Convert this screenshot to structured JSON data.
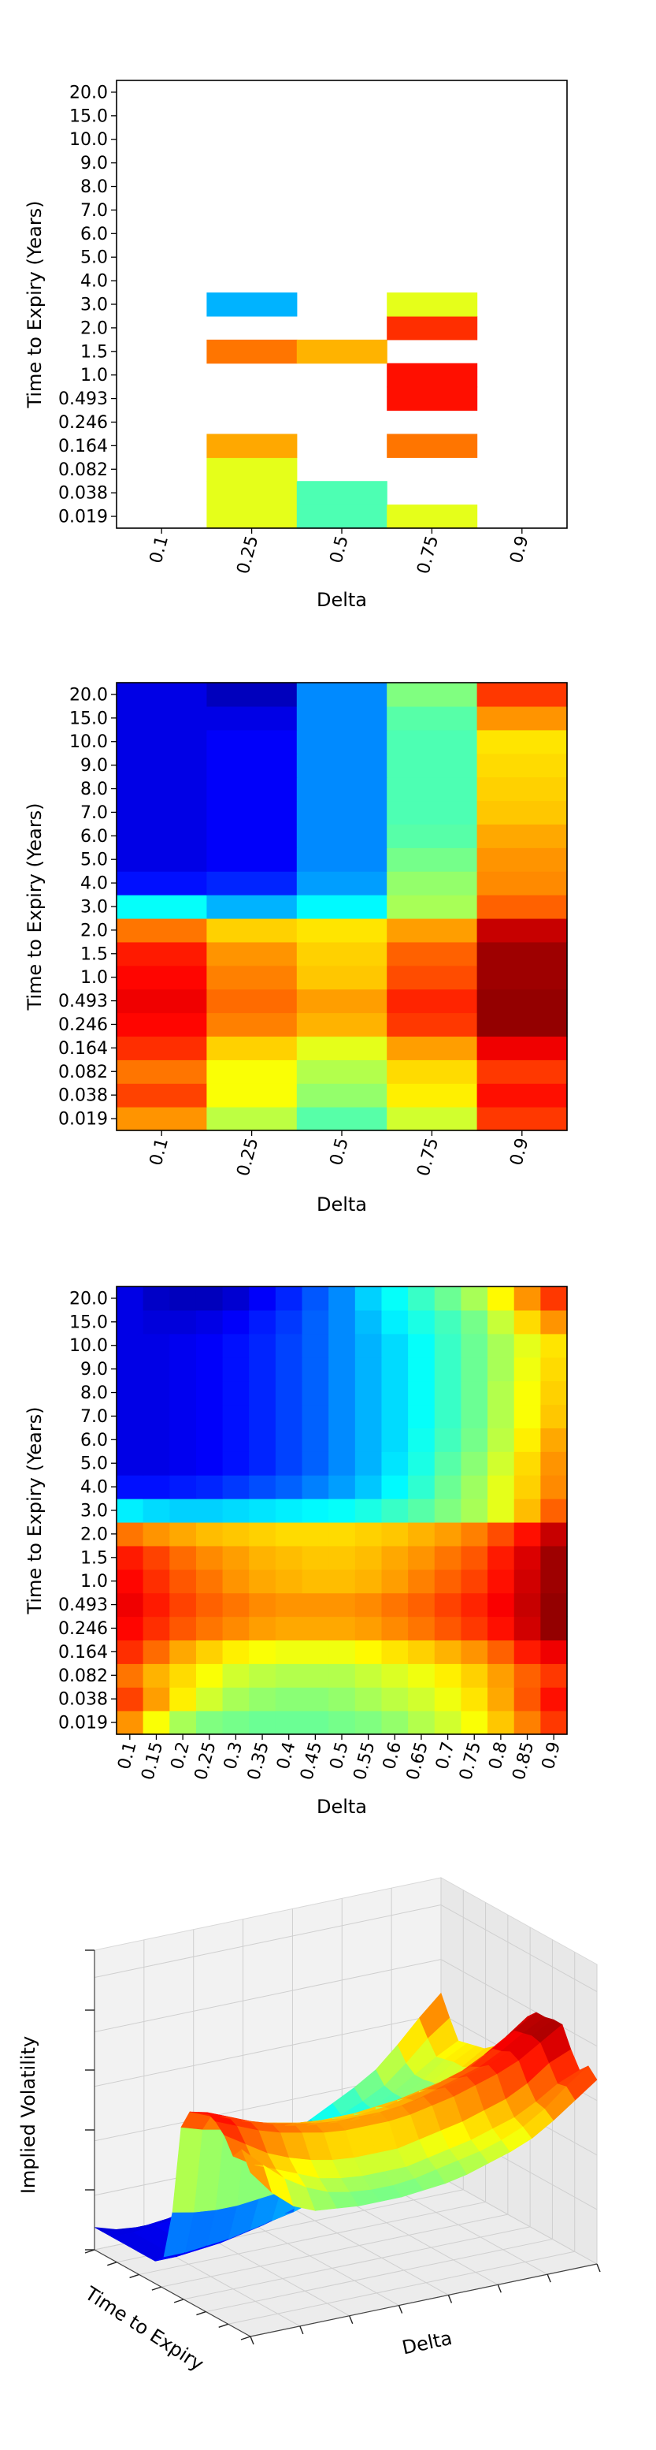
{
  "chart_data": [
    {
      "type": "heatmap",
      "title": "",
      "xlabel": "Delta",
      "ylabel": "Time to Expiry (Years)",
      "colormap": "jet",
      "x_categories": [
        "0.1",
        "0.25",
        "0.5",
        "0.75",
        "0.9"
      ],
      "y_categories": [
        "0.019",
        "0.038",
        "0.082",
        "0.164",
        "0.246",
        "0.493",
        "1.0",
        "1.5",
        "2.0",
        "3.0",
        "4.0",
        "5.0",
        "6.0",
        "7.0",
        "8.0",
        "9.0",
        "10.0",
        "15.0",
        "20.0"
      ],
      "x_tick_labels": [
        "0.1",
        "0.25",
        "0.5",
        "0.75",
        "0.9"
      ],
      "y_tick_labels": [
        "0.019",
        "0.038",
        "0.082",
        "0.164",
        "0.246",
        "0.493",
        "1.0",
        "1.5",
        "2.0",
        "3.0",
        "4.0",
        "5.0",
        "6.0",
        "7.0",
        "8.0",
        "9.0",
        "10.0",
        "15.0",
        "20.0"
      ],
      "x_tick_rotation": 75,
      "values": [
        [
          null,
          0.6,
          0.45,
          0.6,
          null
        ],
        [
          null,
          0.6,
          0.45,
          null,
          null
        ],
        [
          null,
          0.6,
          null,
          null,
          null
        ],
        [
          null,
          0.71,
          null,
          0.76,
          null
        ],
        [
          null,
          null,
          null,
          null,
          null
        ],
        [
          null,
          null,
          null,
          0.86,
          null
        ],
        [
          null,
          null,
          null,
          0.86,
          null
        ],
        [
          null,
          0.76,
          0.7,
          null,
          null
        ],
        [
          null,
          null,
          null,
          0.83,
          null
        ],
        [
          null,
          0.3,
          null,
          0.6,
          null
        ],
        [
          null,
          null,
          null,
          null,
          null
        ],
        [
          null,
          null,
          null,
          null,
          null
        ],
        [
          null,
          null,
          null,
          null,
          null
        ],
        [
          null,
          null,
          null,
          null,
          null
        ],
        [
          null,
          null,
          null,
          null,
          null
        ],
        [
          null,
          null,
          null,
          null,
          null
        ],
        [
          null,
          null,
          null,
          null,
          null
        ],
        [
          null,
          null,
          null,
          null,
          null
        ],
        [
          null,
          null,
          null,
          null,
          null
        ]
      ]
    },
    {
      "type": "heatmap",
      "title": "",
      "xlabel": "Delta",
      "ylabel": "Time to Expiry (Years)",
      "colormap": "jet",
      "x_categories": [
        "0.1",
        "0.25",
        "0.5",
        "0.75",
        "0.9"
      ],
      "y_categories": [
        "0.019",
        "0.038",
        "0.082",
        "0.164",
        "0.246",
        "0.493",
        "1.0",
        "1.5",
        "2.0",
        "3.0",
        "4.0",
        "5.0",
        "6.0",
        "7.0",
        "8.0",
        "9.0",
        "10.0",
        "15.0",
        "20.0"
      ],
      "x_tick_labels": [
        "0.1",
        "0.25",
        "0.5",
        "0.75",
        "0.9"
      ],
      "y_tick_labels": [
        "0.019",
        "0.038",
        "0.082",
        "0.164",
        "0.246",
        "0.493",
        "1.0",
        "1.5",
        "2.0",
        "3.0",
        "4.0",
        "5.0",
        "6.0",
        "7.0",
        "8.0",
        "9.0",
        "10.0",
        "15.0",
        "20.0"
      ],
      "x_tick_rotation": 75,
      "values": [
        [
          0.73,
          0.56,
          0.46,
          0.58,
          0.82
        ],
        [
          0.81,
          0.62,
          0.52,
          0.64,
          0.86
        ],
        [
          0.76,
          0.62,
          0.55,
          0.66,
          0.82
        ],
        [
          0.83,
          0.67,
          0.6,
          0.72,
          0.89
        ],
        [
          0.87,
          0.75,
          0.7,
          0.82,
          0.98
        ],
        [
          0.89,
          0.77,
          0.72,
          0.84,
          0.98
        ],
        [
          0.87,
          0.75,
          0.68,
          0.8,
          0.97
        ],
        [
          0.85,
          0.73,
          0.67,
          0.78,
          0.97
        ],
        [
          0.76,
          0.67,
          0.65,
          0.72,
          0.93
        ],
        [
          0.38,
          0.3,
          0.37,
          0.54,
          0.78
        ],
        [
          0.14,
          0.16,
          0.28,
          0.52,
          0.74
        ],
        [
          0.1,
          0.12,
          0.26,
          0.49,
          0.73
        ],
        [
          0.1,
          0.12,
          0.26,
          0.46,
          0.71
        ],
        [
          0.1,
          0.12,
          0.26,
          0.45,
          0.68
        ],
        [
          0.1,
          0.12,
          0.26,
          0.45,
          0.67
        ],
        [
          0.1,
          0.12,
          0.26,
          0.45,
          0.66
        ],
        [
          0.1,
          0.12,
          0.26,
          0.45,
          0.65
        ],
        [
          0.1,
          0.1,
          0.26,
          0.46,
          0.73
        ],
        [
          0.1,
          0.06,
          0.26,
          0.5,
          0.82
        ]
      ]
    },
    {
      "type": "heatmap",
      "title": "",
      "xlabel": "Delta",
      "ylabel": "Time to Expiry (Years)",
      "colormap": "jet",
      "x_categories": [
        "0.1",
        "0.15",
        "0.2",
        "0.25",
        "0.3",
        "0.35",
        "0.4",
        "0.45",
        "0.5",
        "0.55",
        "0.6",
        "0.65",
        "0.7",
        "0.75",
        "0.8",
        "0.85",
        "0.9"
      ],
      "y_categories": [
        "0.019",
        "0.038",
        "0.082",
        "0.164",
        "0.246",
        "0.493",
        "1.0",
        "1.5",
        "2.0",
        "3.0",
        "4.0",
        "5.0",
        "6.0",
        "7.0",
        "8.0",
        "9.0",
        "10.0",
        "15.0",
        "20.0"
      ],
      "x_tick_labels": [
        "0.1",
        "0.15",
        "0.2",
        "0.25",
        "0.3",
        "0.35",
        "0.4",
        "0.45",
        "0.5",
        "0.55",
        "0.6",
        "0.65",
        "0.7",
        "0.75",
        "0.8",
        "0.85",
        "0.9"
      ],
      "y_tick_labels": [
        "0.019",
        "0.038",
        "0.082",
        "0.164",
        "0.246",
        "0.493",
        "1.0",
        "1.5",
        "2.0",
        "3.0",
        "4.0",
        "5.0",
        "6.0",
        "7.0",
        "8.0",
        "9.0",
        "10.0",
        "15.0",
        "20.0"
      ],
      "x_tick_rotation": 75,
      "row_profile": [
        [
          0.73,
          0.62,
          0.54,
          0.5,
          0.49,
          0.48,
          0.48,
          0.48,
          0.49,
          0.5,
          0.52,
          0.55,
          0.58,
          0.62,
          0.68,
          0.75,
          0.82
        ],
        [
          0.81,
          0.72,
          0.64,
          0.58,
          0.54,
          0.52,
          0.51,
          0.51,
          0.52,
          0.54,
          0.56,
          0.58,
          0.61,
          0.65,
          0.71,
          0.79,
          0.86
        ],
        [
          0.76,
          0.7,
          0.66,
          0.62,
          0.58,
          0.56,
          0.55,
          0.55,
          0.55,
          0.57,
          0.59,
          0.61,
          0.64,
          0.67,
          0.72,
          0.78,
          0.82
        ],
        [
          0.83,
          0.77,
          0.71,
          0.67,
          0.64,
          0.62,
          0.61,
          0.61,
          0.61,
          0.63,
          0.65,
          0.67,
          0.7,
          0.73,
          0.78,
          0.85,
          0.89
        ],
        [
          0.87,
          0.83,
          0.79,
          0.76,
          0.74,
          0.72,
          0.71,
          0.71,
          0.71,
          0.72,
          0.74,
          0.76,
          0.79,
          0.82,
          0.86,
          0.92,
          0.98
        ],
        [
          0.89,
          0.85,
          0.81,
          0.78,
          0.76,
          0.74,
          0.73,
          0.73,
          0.73,
          0.74,
          0.76,
          0.78,
          0.81,
          0.84,
          0.88,
          0.93,
          0.98
        ],
        [
          0.87,
          0.83,
          0.79,
          0.76,
          0.73,
          0.71,
          0.7,
          0.69,
          0.69,
          0.7,
          0.72,
          0.75,
          0.78,
          0.81,
          0.86,
          0.92,
          0.97
        ],
        [
          0.85,
          0.81,
          0.77,
          0.74,
          0.72,
          0.7,
          0.69,
          0.68,
          0.68,
          0.69,
          0.71,
          0.73,
          0.76,
          0.79,
          0.85,
          0.91,
          0.97
        ],
        [
          0.76,
          0.73,
          0.71,
          0.69,
          0.68,
          0.67,
          0.66,
          0.66,
          0.66,
          0.67,
          0.68,
          0.7,
          0.72,
          0.75,
          0.8,
          0.86,
          0.93
        ],
        [
          0.36,
          0.34,
          0.33,
          0.33,
          0.34,
          0.35,
          0.36,
          0.37,
          0.38,
          0.4,
          0.43,
          0.46,
          0.5,
          0.54,
          0.6,
          0.69,
          0.78
        ],
        [
          0.14,
          0.14,
          0.15,
          0.16,
          0.18,
          0.2,
          0.22,
          0.25,
          0.28,
          0.32,
          0.37,
          0.42,
          0.48,
          0.53,
          0.6,
          0.67,
          0.74
        ],
        [
          0.1,
          0.1,
          0.11,
          0.12,
          0.14,
          0.16,
          0.19,
          0.22,
          0.26,
          0.3,
          0.35,
          0.4,
          0.46,
          0.51,
          0.58,
          0.66,
          0.73
        ],
        [
          0.1,
          0.1,
          0.11,
          0.12,
          0.14,
          0.16,
          0.19,
          0.22,
          0.26,
          0.3,
          0.34,
          0.39,
          0.44,
          0.49,
          0.56,
          0.64,
          0.71
        ],
        [
          0.1,
          0.1,
          0.11,
          0.12,
          0.14,
          0.16,
          0.19,
          0.22,
          0.26,
          0.3,
          0.34,
          0.38,
          0.43,
          0.48,
          0.55,
          0.62,
          0.68
        ],
        [
          0.1,
          0.1,
          0.11,
          0.12,
          0.14,
          0.16,
          0.19,
          0.22,
          0.26,
          0.3,
          0.34,
          0.38,
          0.43,
          0.48,
          0.55,
          0.62,
          0.67
        ],
        [
          0.1,
          0.1,
          0.11,
          0.12,
          0.14,
          0.16,
          0.19,
          0.22,
          0.26,
          0.3,
          0.34,
          0.38,
          0.43,
          0.48,
          0.54,
          0.61,
          0.66
        ],
        [
          0.1,
          0.1,
          0.11,
          0.12,
          0.14,
          0.16,
          0.19,
          0.22,
          0.26,
          0.3,
          0.34,
          0.38,
          0.43,
          0.48,
          0.54,
          0.6,
          0.65
        ],
        [
          0.1,
          0.09,
          0.09,
          0.1,
          0.12,
          0.15,
          0.18,
          0.22,
          0.26,
          0.31,
          0.36,
          0.4,
          0.44,
          0.49,
          0.57,
          0.66,
          0.73
        ],
        [
          0.1,
          0.07,
          0.06,
          0.06,
          0.08,
          0.12,
          0.16,
          0.21,
          0.26,
          0.33,
          0.38,
          0.43,
          0.48,
          0.54,
          0.63,
          0.73,
          0.82
        ]
      ]
    },
    {
      "type": "surface",
      "title": "",
      "xlabel": "Delta",
      "ylabel": "Time to Expiry",
      "zlabel": "Implied Volatility",
      "colormap": "jet",
      "tick_labels_shown": false,
      "view": "3d perspective"
    }
  ]
}
